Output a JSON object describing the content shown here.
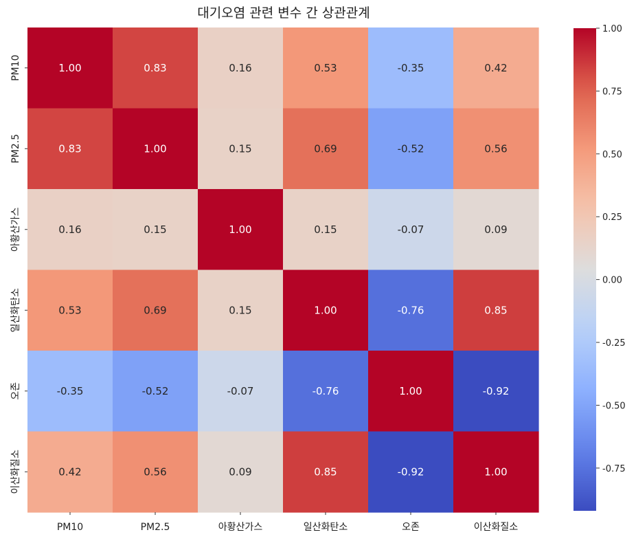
{
  "chart_data": {
    "type": "heatmap",
    "title": "대기오염 관련 변수 간 상관관계",
    "xlabel": "",
    "ylabel": "",
    "x_categories": [
      "PM10",
      "PM2.5",
      "아황산가스",
      "일산화탄소",
      "오존",
      "이산화질소"
    ],
    "y_categories": [
      "PM10",
      "PM2.5",
      "아황산가스",
      "일산화탄소",
      "오존",
      "이산화질소"
    ],
    "values": [
      [
        1.0,
        0.83,
        0.16,
        0.53,
        -0.35,
        0.42
      ],
      [
        0.83,
        1.0,
        0.15,
        0.69,
        -0.52,
        0.56
      ],
      [
        0.16,
        0.15,
        1.0,
        0.15,
        -0.07,
        0.09
      ],
      [
        0.53,
        0.69,
        0.15,
        1.0,
        -0.76,
        0.85
      ],
      [
        -0.35,
        -0.52,
        -0.07,
        -0.76,
        1.0,
        -0.92
      ],
      [
        0.42,
        0.56,
        0.09,
        0.85,
        -0.92,
        1.0
      ]
    ],
    "value_format": "0.00",
    "colormap": "coolwarm",
    "colorbar": {
      "range": [
        -0.92,
        1.0
      ],
      "ticks": [
        1.0,
        0.75,
        0.5,
        0.25,
        0.0,
        -0.25,
        -0.5,
        -0.75
      ],
      "tick_labels": [
        "1.00",
        "0.75",
        "0.50",
        "0.25",
        "0.00",
        "-0.25",
        "-0.50",
        "-0.75"
      ]
    },
    "grid": false,
    "legend": "colorbar-right"
  }
}
